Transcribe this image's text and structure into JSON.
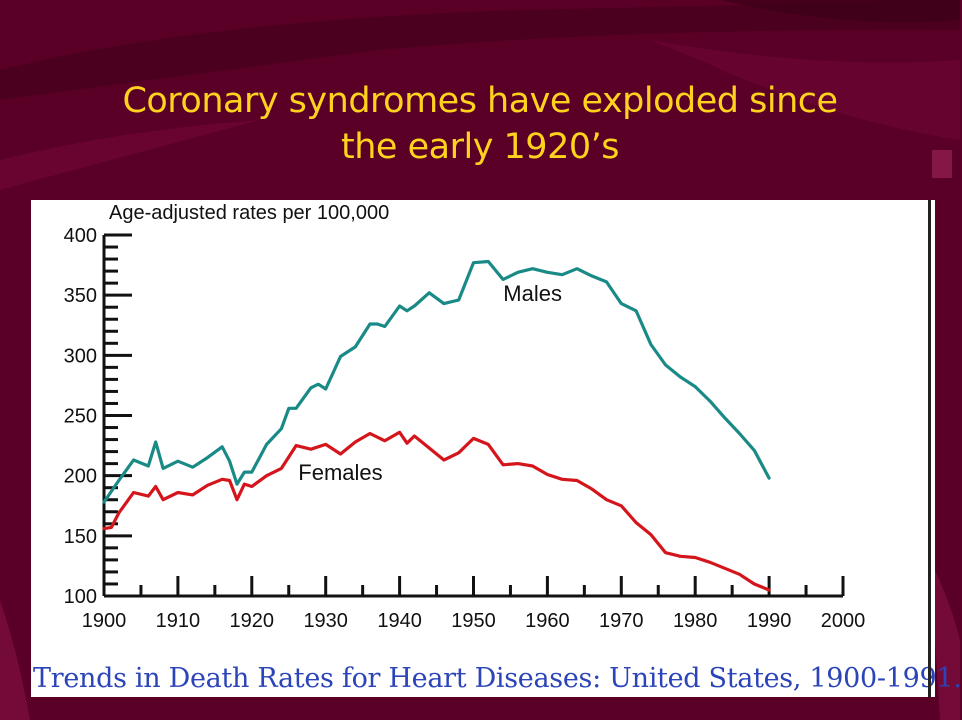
{
  "slide": {
    "title_line1": "Coronary syndromes have exploded since",
    "title_line2": "the early 1920’s",
    "caption": "Trends in Death Rates for Heart Diseases: United States, 1900-1991."
  },
  "colors": {
    "background": "#5a0027",
    "title": "#ffd21e",
    "males": "#1a8a86",
    "females": "#d4161c",
    "caption": "#2b44b8"
  },
  "chart_data": {
    "type": "line",
    "title": "",
    "xlabel": "",
    "ylabel": "Age-adjusted rates per 100,000",
    "xlim": [
      1900,
      2000
    ],
    "ylim": [
      100,
      400
    ],
    "xticks": [
      1900,
      1910,
      1920,
      1930,
      1940,
      1950,
      1960,
      1970,
      1980,
      1990,
      2000
    ],
    "yticks": [
      100,
      150,
      200,
      250,
      300,
      350,
      400
    ],
    "grid": false,
    "legend": "inline labels",
    "series": [
      {
        "name": "Males",
        "x": [
          1900,
          1902,
          1904,
          1906,
          1907,
          1908,
          1910,
          1912,
          1914,
          1916,
          1917,
          1918,
          1919,
          1920,
          1922,
          1924,
          1925,
          1926,
          1928,
          1929,
          1930,
          1932,
          1934,
          1936,
          1937,
          1938,
          1940,
          1941,
          1942,
          1944,
          1946,
          1948,
          1950,
          1952,
          1954,
          1956,
          1958,
          1960,
          1962,
          1964,
          1966,
          1968,
          1970,
          1972,
          1974,
          1976,
          1978,
          1980,
          1982,
          1984,
          1986,
          1988,
          1990
        ],
        "y": [
          178,
          196,
          213,
          208,
          228,
          206,
          212,
          207,
          215,
          224,
          212,
          193,
          203,
          203,
          226,
          239,
          256,
          256,
          273,
          276,
          272,
          299,
          307,
          326,
          326,
          324,
          341,
          337,
          341,
          352,
          343,
          346,
          377,
          378,
          363,
          369,
          372,
          369,
          367,
          372,
          366,
          361,
          343,
          337,
          309,
          292,
          282,
          274,
          262,
          248,
          235,
          221,
          198
        ]
      },
      {
        "name": "Females",
        "x": [
          1900,
          1901,
          1902,
          1904,
          1906,
          1907,
          1908,
          1910,
          1912,
          1914,
          1916,
          1917,
          1918,
          1919,
          1920,
          1922,
          1924,
          1926,
          1928,
          1930,
          1932,
          1934,
          1936,
          1938,
          1940,
          1941,
          1942,
          1944,
          1946,
          1948,
          1950,
          1952,
          1954,
          1956,
          1958,
          1960,
          1962,
          1964,
          1966,
          1968,
          1970,
          1972,
          1974,
          1976,
          1978,
          1980,
          1982,
          1984,
          1986,
          1988,
          1990
        ],
        "y": [
          156,
          157,
          169,
          186,
          183,
          191,
          180,
          186,
          184,
          192,
          197,
          196,
          180,
          193,
          191,
          200,
          206,
          225,
          222,
          226,
          218,
          228,
          235,
          229,
          236,
          227,
          233,
          223,
          213,
          219,
          231,
          226,
          209,
          210,
          208,
          201,
          197,
          196,
          189,
          180,
          175,
          161,
          151,
          136,
          133,
          132,
          128,
          123,
          118,
          110,
          105
        ]
      }
    ],
    "annotations": [
      "Males",
      "Females"
    ]
  }
}
